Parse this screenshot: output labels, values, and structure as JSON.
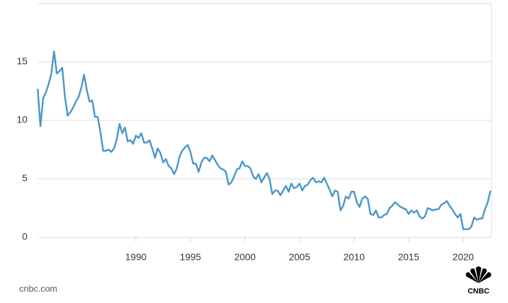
{
  "chart_data": {
    "type": "line",
    "x": [
      1981,
      1981.25,
      1981.5,
      1981.75,
      1982,
      1982.25,
      1982.5,
      1982.75,
      1983,
      1983.25,
      1983.5,
      1983.75,
      1984,
      1984.25,
      1984.5,
      1984.75,
      1985,
      1985.25,
      1985.5,
      1985.75,
      1986,
      1986.25,
      1986.5,
      1986.75,
      1987,
      1987.25,
      1987.5,
      1987.75,
      1988,
      1988.25,
      1988.5,
      1988.75,
      1989,
      1989.25,
      1989.5,
      1989.75,
      1990,
      1990.25,
      1990.5,
      1990.75,
      1991,
      1991.25,
      1991.5,
      1991.75,
      1992,
      1992.25,
      1992.5,
      1992.75,
      1993,
      1993.25,
      1993.5,
      1993.75,
      1994,
      1994.25,
      1994.5,
      1994.75,
      1995,
      1995.25,
      1995.5,
      1995.75,
      1996,
      1996.25,
      1996.5,
      1996.75,
      1997,
      1997.25,
      1997.5,
      1997.75,
      1998,
      1998.25,
      1998.5,
      1998.75,
      1999,
      1999.25,
      1999.5,
      1999.75,
      2000,
      2000.25,
      2000.5,
      2000.75,
      2001,
      2001.25,
      2001.5,
      2001.75,
      2002,
      2002.25,
      2002.5,
      2002.75,
      2003,
      2003.25,
      2003.5,
      2003.75,
      2004,
      2004.25,
      2004.5,
      2004.75,
      2005,
      2005.25,
      2005.5,
      2005.75,
      2006,
      2006.25,
      2006.5,
      2006.75,
      2007,
      2007.25,
      2007.5,
      2007.75,
      2008,
      2008.25,
      2008.5,
      2008.75,
      2009,
      2009.25,
      2009.5,
      2009.75,
      2010,
      2010.25,
      2010.5,
      2010.75,
      2011,
      2011.25,
      2011.5,
      2011.75,
      2012,
      2012.25,
      2012.5,
      2012.75,
      2013,
      2013.25,
      2013.5,
      2013.75,
      2014,
      2014.25,
      2014.5,
      2014.75,
      2015,
      2015.25,
      2015.5,
      2015.75,
      2016,
      2016.25,
      2016.5,
      2016.75,
      2017,
      2017.25,
      2017.5,
      2017.75,
      2018,
      2018.25,
      2018.5,
      2018.75,
      2019,
      2019.25,
      2019.5,
      2019.75,
      2020,
      2020.25,
      2020.5,
      2020.75,
      2021,
      2021.25,
      2021.5,
      2021.75,
      2022,
      2022.25,
      2022.5
    ],
    "series": [
      {
        "color": "#4a97c9",
        "values": [
          12.7,
          9.5,
          11.9,
          12.4,
          13.1,
          14.0,
          15.9,
          14.0,
          14.2,
          14.5,
          12.0,
          10.4,
          10.7,
          11.1,
          11.6,
          12.0,
          12.8,
          13.9,
          12.6,
          11.6,
          11.7,
          10.3,
          10.3,
          9.0,
          7.4,
          7.4,
          7.5,
          7.3,
          7.6,
          8.4,
          9.7,
          8.9,
          9.4,
          8.2,
          8.3,
          8.0,
          8.7,
          8.5,
          8.9,
          8.1,
          8.1,
          8.3,
          7.6,
          6.8,
          7.6,
          7.2,
          6.4,
          6.7,
          6.1,
          5.9,
          5.4,
          5.9,
          6.9,
          7.4,
          7.7,
          7.9,
          7.3,
          6.3,
          6.3,
          5.6,
          6.4,
          6.8,
          6.8,
          6.5,
          7.0,
          6.6,
          6.2,
          5.9,
          5.8,
          5.6,
          4.5,
          4.7,
          5.2,
          5.8,
          5.9,
          6.5,
          6.1,
          6.1,
          5.9,
          5.2,
          5.0,
          5.4,
          4.7,
          5.1,
          5.5,
          5.0,
          3.7,
          4.0,
          4.0,
          3.6,
          4.0,
          4.4,
          3.9,
          4.6,
          4.2,
          4.3,
          4.6,
          4.0,
          4.4,
          4.5,
          4.9,
          5.1,
          4.7,
          4.8,
          4.7,
          5.1,
          4.6,
          4.1,
          3.5,
          4.0,
          3.9,
          2.3,
          2.7,
          3.5,
          3.3,
          3.9,
          3.9,
          3.0,
          2.6,
          3.3,
          3.5,
          3.3,
          2.0,
          1.9,
          2.3,
          1.7,
          1.7,
          1.9,
          2.0,
          2.5,
          2.7,
          3.0,
          2.8,
          2.6,
          2.5,
          2.4,
          2.0,
          2.3,
          2.1,
          2.3,
          1.8,
          1.6,
          1.8,
          2.5,
          2.4,
          2.3,
          2.4,
          2.4,
          2.8,
          2.9,
          3.1,
          2.7,
          2.4,
          2.0,
          1.7,
          2.0,
          0.7,
          0.7,
          0.7,
          0.9,
          1.7,
          1.5,
          1.6,
          1.6,
          2.4,
          3.0,
          4.0
        ]
      }
    ],
    "xlim": [
      1981,
      2022.6
    ],
    "xticks": [
      1990,
      1995,
      2000,
      2005,
      2010,
      2015,
      2020
    ],
    "ylim": [
      0,
      20
    ],
    "yticks": [
      0,
      5,
      10,
      15
    ],
    "grid": true,
    "source": "cnbc.com",
    "logo": "CNBC"
  }
}
